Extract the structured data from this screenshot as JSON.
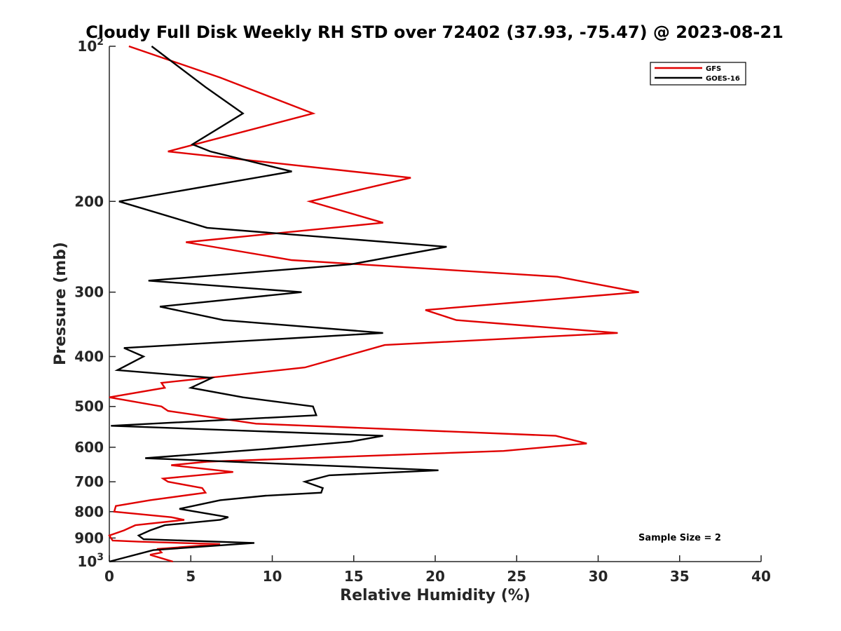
{
  "chart_data": {
    "type": "line",
    "title": "Cloudy Full Disk Weekly RH STD over 72402 (37.93, -75.47) @ 2023-08-21",
    "xlabel": "Relative Humidity (%)",
    "ylabel": "Pressure (mb)",
    "xlim": [
      0,
      40
    ],
    "ylim": [
      100,
      1000
    ],
    "y_scale": "log",
    "y_reversed": true,
    "grid": false,
    "legend_position": "top-right",
    "x_ticks": [
      "0",
      "5",
      "10",
      "15",
      "20",
      "25",
      "30",
      "35",
      "40"
    ],
    "y_ticks": [
      {
        "value": 100,
        "base": "10",
        "exp": "2"
      },
      {
        "value": 200,
        "label": "200"
      },
      {
        "value": 300,
        "label": "300"
      },
      {
        "value": 400,
        "label": "400"
      },
      {
        "value": 500,
        "label": "500"
      },
      {
        "value": 600,
        "label": "600"
      },
      {
        "value": 700,
        "label": "700"
      },
      {
        "value": 800,
        "label": "800"
      },
      {
        "value": 900,
        "label": "900"
      },
      {
        "value": 1000,
        "base": "10",
        "exp": "3"
      }
    ],
    "annotation": "Sample Size = 2",
    "series": [
      {
        "name": "GFS",
        "color": "#e00000",
        "points": [
          [
            1.2,
            100
          ],
          [
            6.8,
            115
          ],
          [
            12.5,
            135
          ],
          [
            3.6,
            160
          ],
          [
            18.5,
            180
          ],
          [
            12.3,
            200
          ],
          [
            16.8,
            220
          ],
          [
            4.7,
            240
          ],
          [
            11.2,
            260
          ],
          [
            27.5,
            280
          ],
          [
            32.5,
            300
          ],
          [
            19.4,
            325
          ],
          [
            21.3,
            340
          ],
          [
            31.2,
            360
          ],
          [
            16.9,
            380
          ],
          [
            12.0,
            420
          ],
          [
            3.2,
            450
          ],
          [
            3.4,
            460
          ],
          [
            0.0,
            480
          ],
          [
            3.2,
            500
          ],
          [
            3.6,
            510
          ],
          [
            9.0,
            540
          ],
          [
            27.4,
            570
          ],
          [
            29.3,
            590
          ],
          [
            24.2,
            610
          ],
          [
            6.0,
            640
          ],
          [
            3.8,
            650
          ],
          [
            7.6,
            670
          ],
          [
            3.3,
            690
          ],
          [
            3.6,
            700
          ],
          [
            5.7,
            720
          ],
          [
            5.9,
            735
          ],
          [
            2.5,
            760
          ],
          [
            0.4,
            780
          ],
          [
            0.3,
            800
          ],
          [
            3.8,
            820
          ],
          [
            4.6,
            830
          ],
          [
            1.6,
            850
          ],
          [
            0.9,
            870
          ],
          [
            0.0,
            890
          ],
          [
            0.2,
            910
          ],
          [
            1.8,
            915
          ],
          [
            6.8,
            925
          ],
          [
            3.0,
            945
          ],
          [
            3.2,
            960
          ],
          [
            2.5,
            970
          ],
          [
            3.9,
            1000
          ]
        ]
      },
      {
        "name": "GOES-16",
        "color": "#000000",
        "points": [
          [
            2.6,
            100
          ],
          [
            5.9,
            120
          ],
          [
            8.2,
            135
          ],
          [
            5.1,
            155
          ],
          [
            6.2,
            160
          ],
          [
            11.2,
            175
          ],
          [
            0.6,
            200
          ],
          [
            6.0,
            225
          ],
          [
            20.7,
            245
          ],
          [
            14.8,
            265
          ],
          [
            2.4,
            285
          ],
          [
            11.8,
            300
          ],
          [
            3.1,
            320
          ],
          [
            7.0,
            340
          ],
          [
            16.8,
            360
          ],
          [
            0.9,
            385
          ],
          [
            2.1,
            400
          ],
          [
            0.5,
            425
          ],
          [
            6.3,
            440
          ],
          [
            5.0,
            460
          ],
          [
            8.2,
            480
          ],
          [
            12.5,
            500
          ],
          [
            12.7,
            520
          ],
          [
            0.1,
            545
          ],
          [
            16.8,
            570
          ],
          [
            14.8,
            585
          ],
          [
            9.5,
            605
          ],
          [
            2.2,
            630
          ],
          [
            20.2,
            665
          ],
          [
            13.5,
            680
          ],
          [
            12.0,
            700
          ],
          [
            13.1,
            720
          ],
          [
            13.0,
            735
          ],
          [
            9.6,
            745
          ],
          [
            6.8,
            760
          ],
          [
            4.3,
            790
          ],
          [
            7.3,
            820
          ],
          [
            6.8,
            830
          ],
          [
            3.4,
            850
          ],
          [
            2.5,
            870
          ],
          [
            1.8,
            890
          ],
          [
            2.1,
            905
          ],
          [
            8.9,
            920
          ],
          [
            2.7,
            950
          ],
          [
            0.0,
            1000
          ]
        ]
      }
    ]
  }
}
